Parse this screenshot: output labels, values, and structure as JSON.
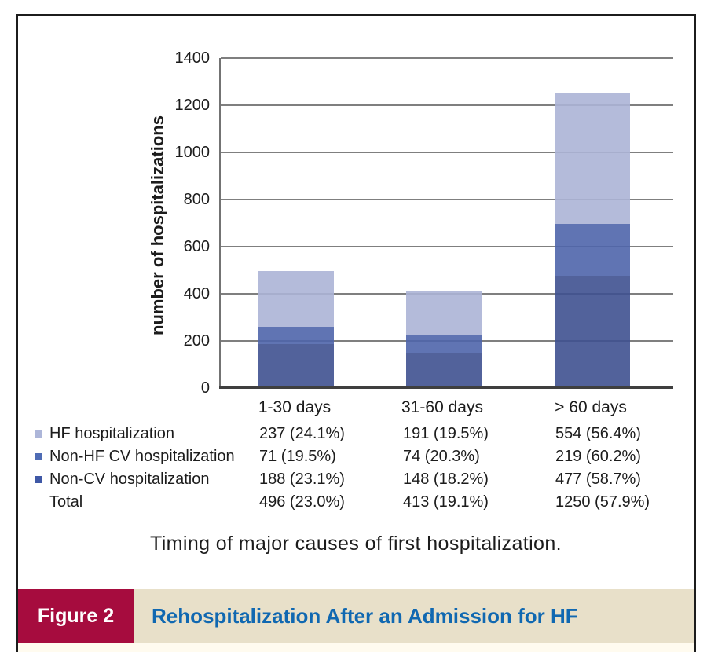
{
  "figure": {
    "label": "Figure 2",
    "title": "Rehospitalization After an Admission for HF",
    "caption": "Timing of major causes of first hospitalization."
  },
  "chart_data": {
    "type": "bar",
    "stacked": true,
    "title": "",
    "xlabel": "",
    "ylabel": "number of hospitalizations",
    "ylim": [
      0,
      1400
    ],
    "yticks": [
      0,
      200,
      400,
      600,
      800,
      1000,
      1200,
      1400
    ],
    "grid": "horizontal gridlines at each 200",
    "legend_position": "bottom-left table",
    "categories": [
      "1-30 days",
      "31-60 days",
      "> 60 days"
    ],
    "series": [
      {
        "name": "Non-CV hospitalization",
        "color": "#3f5190",
        "values": [
          188,
          148,
          477
        ]
      },
      {
        "name": "Non-HF CV hospitalization",
        "color": "#4f65ab",
        "values": [
          71,
          74,
          219
        ]
      },
      {
        "name": "HF hospitalization",
        "color": "#acb4d6",
        "values": [
          237,
          191,
          554
        ]
      }
    ],
    "totals": [
      496,
      413,
      1250
    ]
  },
  "table": {
    "columns": [
      "1-30 days",
      "31-60 days",
      "> 60 days"
    ],
    "rows": [
      {
        "label": "HF hospitalization",
        "swatch": "#adb6d9",
        "values": [
          "237 (24.1%)",
          "191 (19.5%)",
          "554 (56.4%)"
        ]
      },
      {
        "label": "Non-HF CV hospitalization",
        "swatch": "#4f6cb5",
        "values": [
          "71 (19.5%)",
          "74 (20.3%)",
          "219 (60.2%)"
        ]
      },
      {
        "label": "Non-CV hospitalization",
        "swatch": "#3f58a6",
        "values": [
          "188 (23.1%)",
          "148 (18.2%)",
          "477 (58.7%)"
        ]
      },
      {
        "label": "Total",
        "swatch": null,
        "values": [
          "496 (23.0%)",
          "413 (19.1%)",
          "1250 (57.9%)"
        ]
      }
    ]
  },
  "colors": {
    "banner_red": "#a60c3e",
    "banner_beige": "#e8e0c9",
    "title_blue": "#1068b1",
    "cream": "#fffbef",
    "gridline": "#7f7f7f",
    "axis": "#3f3f3f",
    "frame": "#1c1c1c"
  }
}
